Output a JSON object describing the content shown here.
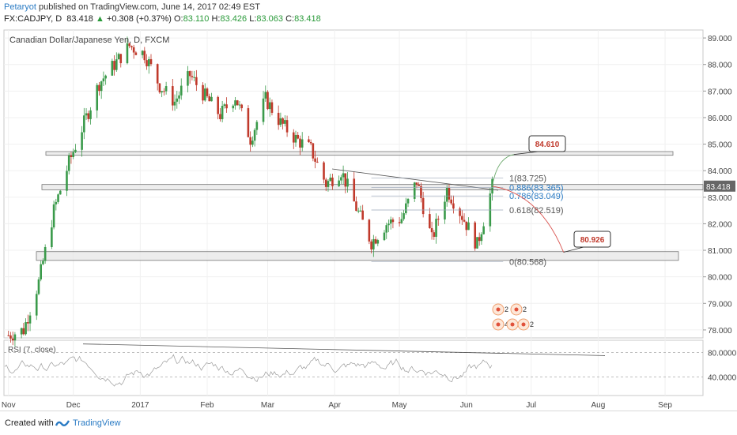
{
  "header": {
    "author": "Petaryot",
    "published": "published on TradingView.com, June 14, 2017 02:49 EST",
    "symbol": "FX:CADJPY, D",
    "last": "83.418",
    "change": "+0.308 (+0.37%)",
    "o_label": "O:",
    "o_value": "83.110",
    "h_label": "H:",
    "h_value": "83.426",
    "l_label": "L:",
    "l_value": "83.063",
    "c_label": "C:",
    "c_value": "83.418"
  },
  "chart_data": {
    "type": "candlestick",
    "title": "Canadian Dollar/Japanese Yen, D, FXCM",
    "x_ticks": [
      "Nov",
      "Dec",
      "2017",
      "Feb",
      "Mar",
      "Apr",
      "May",
      "Jun",
      "Jul",
      "Aug",
      "Sep"
    ],
    "y_ticks": [
      "89.000",
      "88.000",
      "87.000",
      "86.000",
      "85.000",
      "84.000",
      "83.000",
      "82.000",
      "81.000",
      "80.000",
      "79.000",
      "78.000"
    ],
    "ylim": [
      77.7,
      89.3
    ],
    "last_price_label": "83.418",
    "close_path": [
      [
        "2016-11-01",
        77.8
      ],
      [
        "2016-11-08",
        78.0
      ],
      [
        "2016-11-15",
        79.8
      ],
      [
        "2016-11-22",
        82.5
      ],
      [
        "2016-11-29",
        84.3
      ],
      [
        "2016-12-06",
        85.8
      ],
      [
        "2016-12-13",
        87.3
      ],
      [
        "2016-12-20",
        88.0
      ],
      [
        "2016-12-27",
        88.7
      ],
      [
        "2017-01-03",
        88.4
      ],
      [
        "2017-01-10",
        87.2
      ],
      [
        "2017-01-17",
        86.6
      ],
      [
        "2017-01-24",
        87.6
      ],
      [
        "2017-01-31",
        86.8
      ],
      [
        "2017-02-07",
        86.1
      ],
      [
        "2017-02-14",
        86.8
      ],
      [
        "2017-02-21",
        85.2
      ],
      [
        "2017-02-28",
        86.7
      ],
      [
        "2017-03-07",
        85.8
      ],
      [
        "2017-03-14",
        85.2
      ],
      [
        "2017-03-21",
        84.8
      ],
      [
        "2017-03-28",
        83.5
      ],
      [
        "2017-04-04",
        84.0
      ],
      [
        "2017-04-11",
        82.6
      ],
      [
        "2017-04-18",
        81.3
      ],
      [
        "2017-04-25",
        82.0
      ],
      [
        "2017-05-02",
        82.2
      ],
      [
        "2017-05-09",
        83.6
      ],
      [
        "2017-05-16",
        81.4
      ],
      [
        "2017-05-23",
        83.3
      ],
      [
        "2017-05-30",
        82.3
      ],
      [
        "2017-06-06",
        81.2
      ],
      [
        "2017-06-13",
        83.418
      ]
    ],
    "fibonacci": [
      {
        "level": "1",
        "price": "83.725"
      },
      {
        "level": "0.886",
        "price": "83.365"
      },
      {
        "level": "0.786",
        "price": "83.049"
      },
      {
        "level": "0.618",
        "price": "82.519"
      },
      {
        "level": "0",
        "price": "80.568"
      }
    ],
    "horizontal_zones": [
      {
        "low": 84.58,
        "high": 84.72
      },
      {
        "low": 83.28,
        "high": 83.48
      },
      {
        "low": 80.62,
        "high": 80.95
      }
    ],
    "projections": [
      {
        "label": "84.610",
        "direction": "up",
        "color": "#c0392b"
      },
      {
        "label": "80.926",
        "direction": "down",
        "color": "#c0392b"
      }
    ],
    "event_markers": [
      "2",
      "2",
      "4",
      "3",
      "2"
    ],
    "rsi": {
      "label": "RSI (7, close)",
      "y_ticks": [
        "80.0000",
        "40.0000"
      ],
      "ylim": [
        10,
        100
      ]
    },
    "colors": {
      "up": "#3a9a4a",
      "down": "#c0392b",
      "fib": "#2a7bc4",
      "price_tag": "#666666"
    }
  },
  "footer": {
    "created_with": "Created with",
    "brand": "TradingView"
  }
}
